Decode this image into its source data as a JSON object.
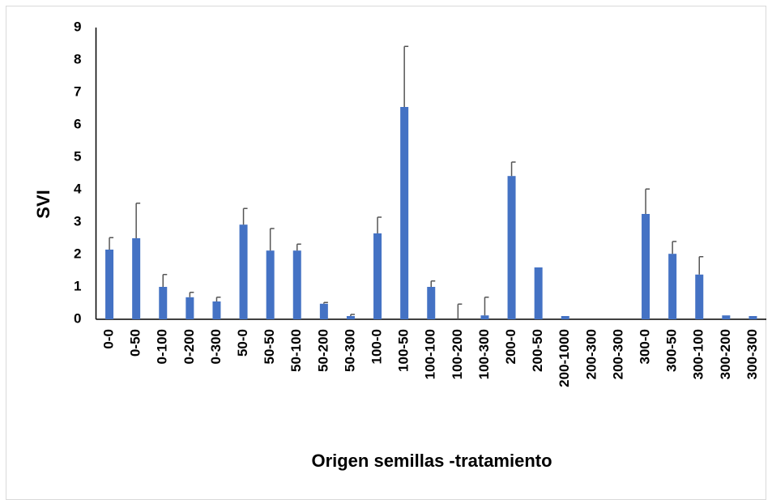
{
  "chart_data": {
    "type": "bar",
    "categories": [
      "0-0",
      "0-50",
      "0-100",
      "0-200",
      "0-300",
      "50-0",
      "50-50",
      "50-100",
      "50-200",
      "50-300",
      "100-0",
      "100-50",
      "100-100",
      "100-200",
      "100-300",
      "200-0",
      "200-50",
      "200-1000",
      "200-300",
      "200-300",
      "300-0",
      "300-50",
      "300-100",
      "300-200",
      "300-300"
    ],
    "values": [
      2.15,
      2.5,
      1.0,
      0.68,
      0.55,
      2.92,
      2.12,
      2.12,
      0.48,
      0.1,
      2.65,
      6.55,
      1.0,
      0,
      0.12,
      4.42,
      1.6,
      0.1,
      0,
      0,
      3.25,
      2.02,
      1.38,
      0.12,
      0.1
    ],
    "errors": [
      0.37,
      1.08,
      0.38,
      0.15,
      0.13,
      0.5,
      0.68,
      0.2,
      0.04,
      0.05,
      0.5,
      1.87,
      0.18,
      0.47,
      0.56,
      0.43,
      0,
      0,
      0,
      0,
      0.77,
      0.38,
      0.55,
      0,
      0
    ],
    "color": "#4472c4",
    "error_color": "#555555",
    "xlabel": "Origen  semillas -tratamiento",
    "ylabel": "SVI",
    "ylim": [
      0,
      9
    ],
    "yticks": [
      0,
      1,
      2,
      3,
      4,
      5,
      6,
      7,
      8,
      9
    ],
    "grid": false
  }
}
